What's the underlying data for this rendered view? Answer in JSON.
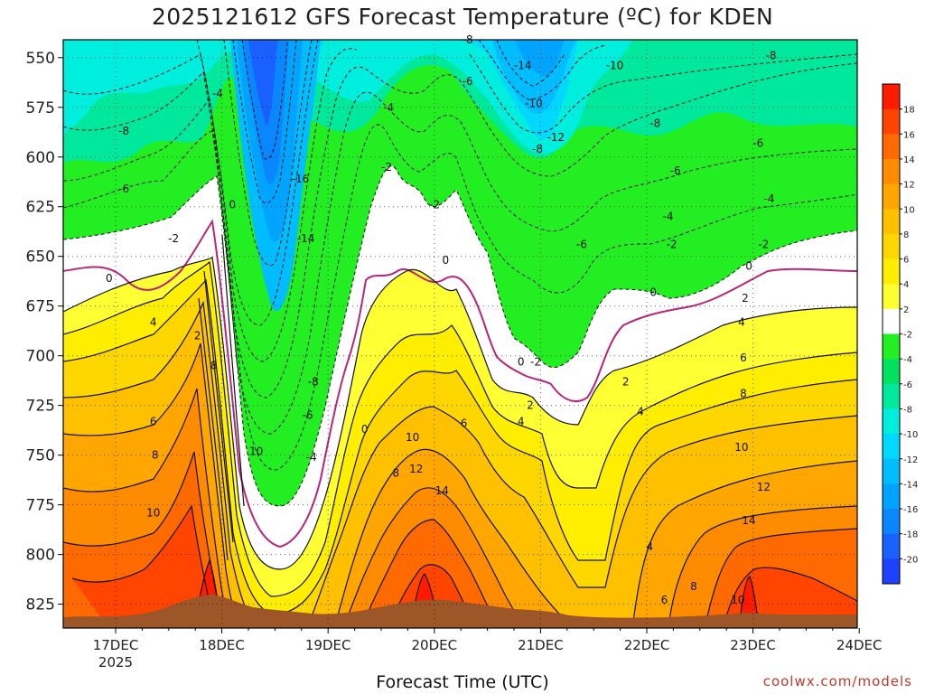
{
  "chart_data": {
    "type": "heatmap",
    "title": "2025121612 GFS Forecast Temperature (ºC) for KDEN",
    "xlabel": "Forecast Time (UTC)",
    "ylabel": "",
    "y_ticks": [
      550,
      575,
      600,
      625,
      650,
      675,
      700,
      725,
      750,
      775,
      800,
      825
    ],
    "ylim": [
      837,
      541
    ],
    "x_ticks": [
      "17DEC",
      "18DEC",
      "19DEC",
      "20DEC",
      "21DEC",
      "22DEC",
      "23DEC",
      "24DEC"
    ],
    "x_subtitle": "2025",
    "colorbar_levels": [
      18,
      16,
      14,
      12,
      10,
      8,
      6,
      4,
      2,
      -2,
      -4,
      -6,
      -8,
      -10,
      -12,
      -14,
      -16,
      -18,
      -20
    ],
    "colorbar_colors": [
      "#ff1a00",
      "#ff4500",
      "#ff6a00",
      "#ff8c00",
      "#ffa600",
      "#ffc000",
      "#ffd700",
      "#ffee00",
      "#ffff33",
      "#ffffff",
      "#22ee22",
      "#00e160",
      "#00e89c",
      "#00eedd",
      "#00d8ff",
      "#00bdff",
      "#00a4ff",
      "#0a86ff",
      "#1a60ff",
      "#1e40ff"
    ],
    "contour_labels": [
      {
        "t": 12.5,
        "p": 661,
        "text": "0"
      },
      {
        "t": 24.5,
        "p": 683,
        "text": "4"
      },
      {
        "t": 36.5,
        "p": 690,
        "text": "2"
      },
      {
        "t": 16.5,
        "p": 587,
        "text": "-8"
      },
      {
        "t": 16.5,
        "p": 616,
        "text": "-6"
      },
      {
        "t": 30,
        "p": 641,
        "text": "-2"
      },
      {
        "t": 24.5,
        "p": 733,
        "text": "6"
      },
      {
        "t": 25,
        "p": 750,
        "text": "8"
      },
      {
        "t": 24.5,
        "p": 779,
        "text": "10"
      },
      {
        "t": 46,
        "p": 624,
        "text": "0"
      },
      {
        "t": 42,
        "p": 568,
        "text": "-4"
      },
      {
        "t": 41,
        "p": 705,
        "text": "8"
      },
      {
        "t": 52.5,
        "p": 748,
        "text": "10"
      },
      {
        "t": 64.5,
        "p": 611,
        "text": "-16"
      },
      {
        "t": 66,
        "p": 641,
        "text": "-14"
      },
      {
        "t": 68,
        "p": 713,
        "text": "-8"
      },
      {
        "t": 66.5,
        "p": 730,
        "text": "-6"
      },
      {
        "t": 67.5,
        "p": 751,
        "text": "-4"
      },
      {
        "t": 82,
        "p": 737,
        "text": "0"
      },
      {
        "t": 88.5,
        "p": 575,
        "text": "-4"
      },
      {
        "t": 88,
        "p": 605,
        "text": "-2"
      },
      {
        "t": 90.5,
        "p": 759,
        "text": "8"
      },
      {
        "t": 101,
        "p": 624,
        "text": "-2"
      },
      {
        "t": 95,
        "p": 741,
        "text": "10"
      },
      {
        "t": 96,
        "p": 757,
        "text": "12"
      },
      {
        "t": 103,
        "p": 768,
        "text": "14"
      },
      {
        "t": 104,
        "p": 652,
        "text": "0"
      },
      {
        "t": 110,
        "p": 541,
        "text": "-8"
      },
      {
        "t": 110,
        "p": 562,
        "text": "-6"
      },
      {
        "t": 109,
        "p": 734,
        "text": "6"
      },
      {
        "t": 124.5,
        "p": 703,
        "text": "0"
      },
      {
        "t": 128.5,
        "p": 703,
        "text": "-2"
      },
      {
        "t": 127,
        "p": 725,
        "text": "2"
      },
      {
        "t": 124.5,
        "p": 733,
        "text": "4"
      },
      {
        "t": 125,
        "p": 554,
        "text": "-14"
      },
      {
        "t": 128,
        "p": 573,
        "text": "-10"
      },
      {
        "t": 129,
        "p": 596,
        "text": "-8"
      },
      {
        "t": 134,
        "p": 590,
        "text": "-12"
      },
      {
        "t": 150,
        "p": 554,
        "text": "-10"
      },
      {
        "t": 141,
        "p": 644,
        "text": "-6"
      },
      {
        "t": 161,
        "p": 583,
        "text": "-8"
      },
      {
        "t": 164.5,
        "p": 630,
        "text": "-4"
      },
      {
        "t": 165.5,
        "p": 644,
        "text": "-2"
      },
      {
        "t": 160.5,
        "p": 668,
        "text": "0"
      },
      {
        "t": 153,
        "p": 713,
        "text": "2"
      },
      {
        "t": 157,
        "p": 728,
        "text": "4"
      },
      {
        "t": 159.5,
        "p": 796,
        "text": "4"
      },
      {
        "t": 166.5,
        "p": 607,
        "text": "-6"
      },
      {
        "t": 171.5,
        "p": 816,
        "text": "8"
      },
      {
        "t": 163.5,
        "p": 823,
        "text": "6"
      },
      {
        "t": 183.5,
        "p": 823,
        "text": "10"
      },
      {
        "t": 192.5,
        "p": 549,
        "text": "-8"
      },
      {
        "t": 189,
        "p": 593,
        "text": "-6"
      },
      {
        "t": 192,
        "p": 621,
        "text": "-4"
      },
      {
        "t": 190.5,
        "p": 644,
        "text": "-2"
      },
      {
        "t": 186.5,
        "p": 655,
        "text": "0"
      },
      {
        "t": 185.5,
        "p": 671,
        "text": "2"
      },
      {
        "t": 184.5,
        "p": 683,
        "text": "4"
      },
      {
        "t": 185,
        "p": 701,
        "text": "6"
      },
      {
        "t": 185,
        "p": 719,
        "text": "8"
      },
      {
        "t": 184.5,
        "p": 746,
        "text": "10"
      },
      {
        "t": 190.5,
        "p": 766,
        "text": "12"
      },
      {
        "t": 186.5,
        "p": 783,
        "text": "14"
      }
    ]
  }
}
